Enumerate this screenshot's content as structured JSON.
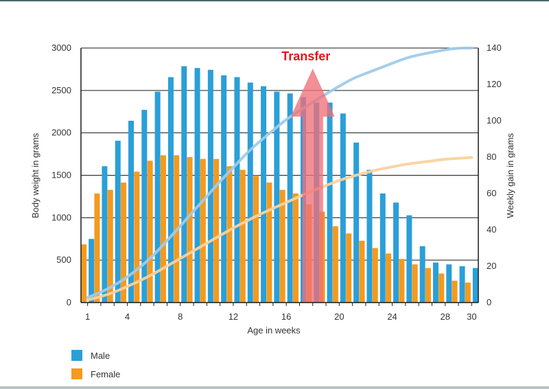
{
  "chart_data": {
    "type": "bar",
    "x": [
      1,
      2,
      3,
      4,
      5,
      6,
      7,
      8,
      9,
      10,
      11,
      12,
      13,
      14,
      15,
      16,
      17,
      18,
      19,
      20,
      21,
      22,
      23,
      24,
      25,
      26,
      27,
      28,
      29,
      30
    ],
    "x_tick_labels": [
      "1",
      "4",
      "8",
      "12",
      "16",
      "20",
      "24",
      "28",
      "30"
    ],
    "x_tick_values": [
      1,
      4,
      8,
      12,
      16,
      20,
      24,
      28,
      30
    ],
    "xlabel": "Age in weeks",
    "ylabel": "Body weight in grams",
    "ylabel_right": "Weekly gain in grams",
    "ylim": [
      0,
      3000
    ],
    "ylim_right": [
      0,
      140
    ],
    "y_ticks": [
      "0",
      "500",
      "1000",
      "1500",
      "2000",
      "2500",
      "3000"
    ],
    "y_ticks_right": [
      "0",
      "20",
      "40",
      "60",
      "80",
      "100",
      "120",
      "140"
    ],
    "series": [
      {
        "name": "Female",
        "kind": "bar",
        "axis": "right",
        "color": "#f49a1e",
        "values": [
          32,
          60,
          62,
          66,
          72,
          78,
          81,
          81,
          80,
          79,
          79,
          75,
          73,
          70,
          66,
          62,
          60,
          54,
          50,
          42,
          38,
          34,
          30,
          27,
          24,
          21,
          19,
          16,
          12,
          11
        ]
      },
      {
        "name": "Male",
        "kind": "bar",
        "axis": "right",
        "color": "#2a9fd8",
        "values": [
          35,
          75,
          89,
          100,
          106,
          116,
          124,
          130,
          129,
          128,
          125,
          124,
          121,
          119,
          116,
          115,
          113,
          110,
          110,
          104,
          88,
          73,
          60,
          55,
          48,
          31,
          22,
          21,
          20,
          19
        ]
      },
      {
        "name": "Male",
        "kind": "line",
        "axis": "left",
        "color": "#9fcbea",
        "values": [
          60,
          120,
          200,
          300,
          420,
          560,
          730,
          900,
          1080,
          1250,
          1430,
          1590,
          1760,
          1900,
          2030,
          2160,
          2260,
          2360,
          2460,
          2550,
          2640,
          2700,
          2760,
          2820,
          2880,
          2920,
          2950,
          2980,
          3010,
          3040
        ]
      },
      {
        "name": "Female",
        "kind": "line",
        "axis": "left",
        "color": "#f9d29e",
        "values": [
          30,
          70,
          120,
          190,
          260,
          340,
          430,
          520,
          610,
          700,
          790,
          880,
          960,
          1040,
          1110,
          1180,
          1250,
          1320,
          1380,
          1440,
          1490,
          1530,
          1570,
          1600,
          1630,
          1650,
          1670,
          1690,
          1700,
          1710
        ]
      }
    ],
    "annotation": {
      "label": "Transfer",
      "week": 18,
      "color": "#f07078"
    },
    "grid": true,
    "legend_position": "bottom-left"
  },
  "legend": [
    {
      "label": "Male",
      "color": "#2a9fd8"
    },
    {
      "label": "Female",
      "color": "#f49a1e"
    }
  ]
}
